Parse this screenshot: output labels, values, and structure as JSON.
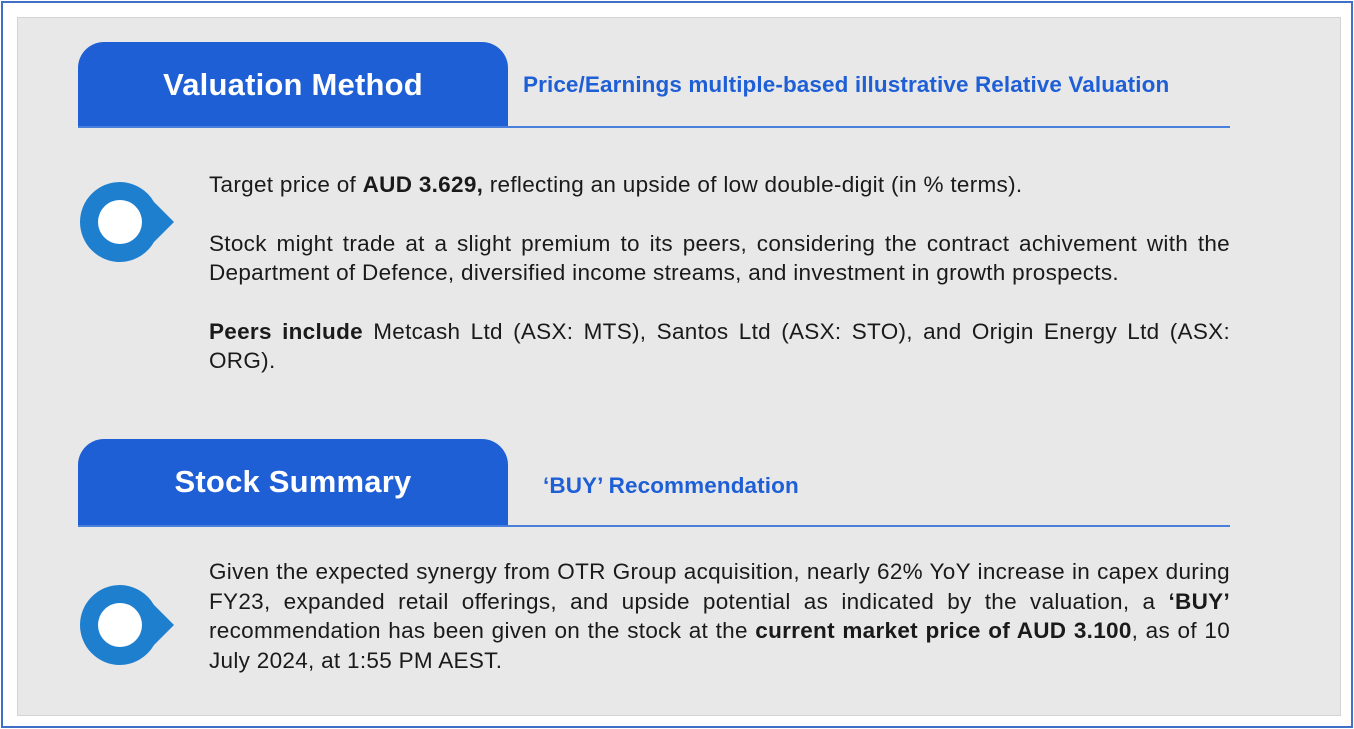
{
  "valuation": {
    "tab_label": "Valuation Method",
    "subtitle": "Price/Earnings multiple-based illustrative Relative Valuation",
    "para1": {
      "pre": "Target price of ",
      "bold": "AUD 3.629,",
      "post": " reflecting an upside of low double-digit (in % terms)."
    },
    "para2": "Stock might trade at a slight premium to its peers, considering the contract achivement with the Department of Defence, diversified income streams, and investment in growth prospects.",
    "para3": {
      "bold": "Peers include",
      "post": " Metcash Ltd (ASX: MTS), Santos Ltd (ASX: STO), and Origin Energy Ltd (ASX: ORG)."
    }
  },
  "summary": {
    "tab_label": "Stock Summary",
    "subtitle": "‘BUY’ Recommendation",
    "para": {
      "pre": "Given the expected synergy from OTR Group acquisition, nearly 62% YoY increase in capex during FY23, expanded retail offerings, and upside potential as indicated by the valuation, a ",
      "bold1": "‘BUY’",
      "mid": " recommendation has been given on the stock at the ",
      "bold2": "current market price of AUD 3.100",
      "post": ", as of 10 July 2024, at 1:55 PM AEST."
    }
  },
  "colors": {
    "accent": "#1f5fd6",
    "pin_outer": "#1e7fcf",
    "pin_inner": "#ffffff",
    "panel": "#e8e8e8",
    "frame": "#3f6fc7"
  },
  "icons": {
    "bullet": "map-pin-bullet-icon"
  }
}
